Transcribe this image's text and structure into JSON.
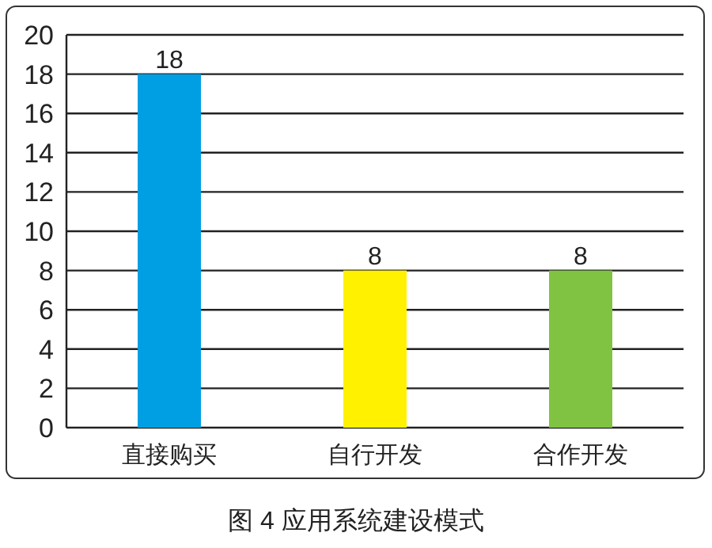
{
  "chart_data": {
    "type": "bar",
    "title": "图 4  应用系统建设模式",
    "categories": [
      "直接购买",
      "自行开发",
      "合作开发"
    ],
    "values": [
      18,
      8,
      8
    ],
    "colors": [
      "#009fe3",
      "#fff100",
      "#80c342"
    ],
    "ylim": [
      0,
      20
    ],
    "yticks": [
      0,
      2,
      4,
      6,
      8,
      10,
      12,
      14,
      16,
      18,
      20
    ],
    "grid": "y",
    "data_labels": true
  }
}
